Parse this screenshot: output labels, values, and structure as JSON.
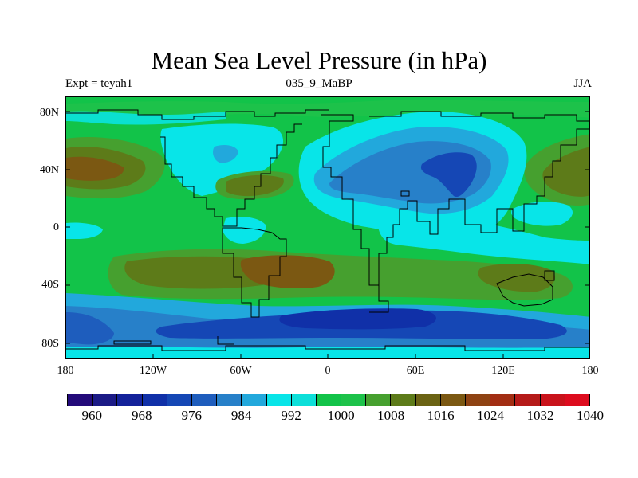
{
  "title": "Mean Sea Level Pressure (in hPa)",
  "subtitle": {
    "left": "Expt = teyah1",
    "center": "035_9_MaBP",
    "right": "JJA"
  },
  "axes": {
    "lat_labels": [
      "80N",
      "40N",
      "0",
      "40S",
      "80S"
    ],
    "lon_labels": [
      "180",
      "120W",
      "60W",
      "0",
      "60E",
      "120E",
      "180"
    ]
  },
  "colorbar": {
    "colors": [
      "#230b7a",
      "#1b1a86",
      "#14229a",
      "#1030a8",
      "#1547b5",
      "#1e5dbd",
      "#2780c9",
      "#22a8dc",
      "#08e5e8",
      "#0ddfd9",
      "#12c349",
      "#1dc24a",
      "#46a02f",
      "#5d7b19",
      "#6b6314",
      "#7b5812",
      "#8e4313",
      "#a22d13",
      "#b51a19",
      "#c9131b",
      "#dd0c1e"
    ],
    "labels": [
      "960",
      "968",
      "976",
      "984",
      "992",
      "1000",
      "1008",
      "1016",
      "1024",
      "1032",
      "1040"
    ]
  },
  "chart_data": {
    "type": "heatmap",
    "title": "Mean Sea Level Pressure (in hPa)",
    "units": "hPa",
    "experiment": "teyah1",
    "period": "035_9_MaBP",
    "season": "JJA",
    "x_range": [
      -180,
      180
    ],
    "y_range": [
      -90,
      90
    ],
    "x_ticks": [
      -180,
      -120,
      -60,
      0,
      60,
      120,
      180
    ],
    "y_ticks": [
      80,
      40,
      0,
      -40,
      -80
    ],
    "levels": [
      956,
      960,
      964,
      968,
      972,
      976,
      980,
      984,
      988,
      992,
      996,
      1000,
      1004,
      1008,
      1012,
      1016,
      1020,
      1024,
      1028,
      1032,
      1036,
      1040
    ]
  }
}
